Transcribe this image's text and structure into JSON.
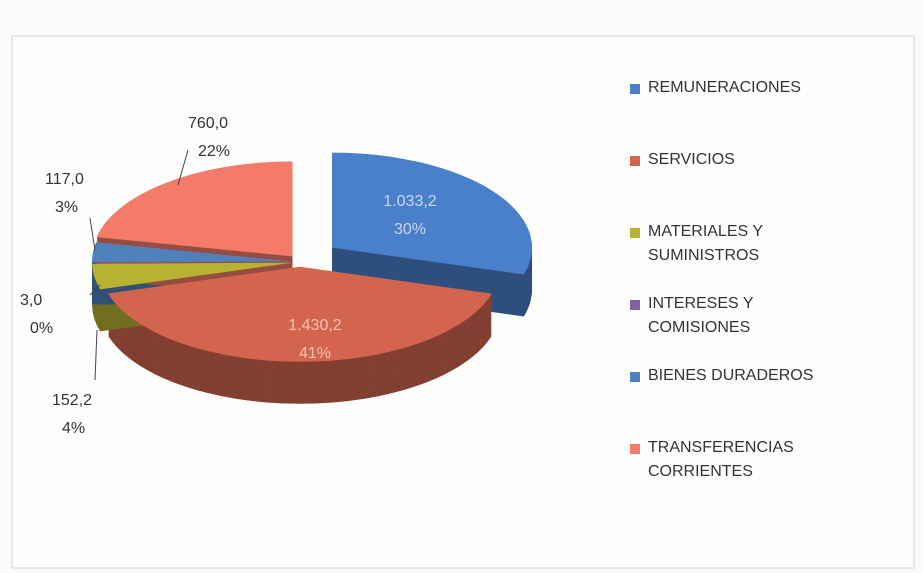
{
  "chart_data": {
    "type": "pie",
    "categories": [
      "REMUNERACIONES",
      "SERVICIOS",
      "MATERIALES Y SUMINISTROS",
      "INTERESES Y COMISIONES",
      "BIENES DURADEROS",
      "TRANSFERENCIAS CORRIENTES"
    ],
    "values": [
      1033.2,
      1430.2,
      152.2,
      3.0,
      117.0,
      760.0
    ],
    "value_labels": [
      "1.033,2",
      "1.430,2",
      "152,2",
      "3,0",
      "117,0",
      "760,0"
    ],
    "percent_labels": [
      "30%",
      "41%",
      "4%",
      "0%",
      "3%",
      "22%"
    ],
    "colors": [
      "#4a7fcb",
      "#d3654e",
      "#b8b232",
      "#8064a2",
      "#4f81bd",
      "#f47a6a"
    ],
    "legend": "right"
  }
}
